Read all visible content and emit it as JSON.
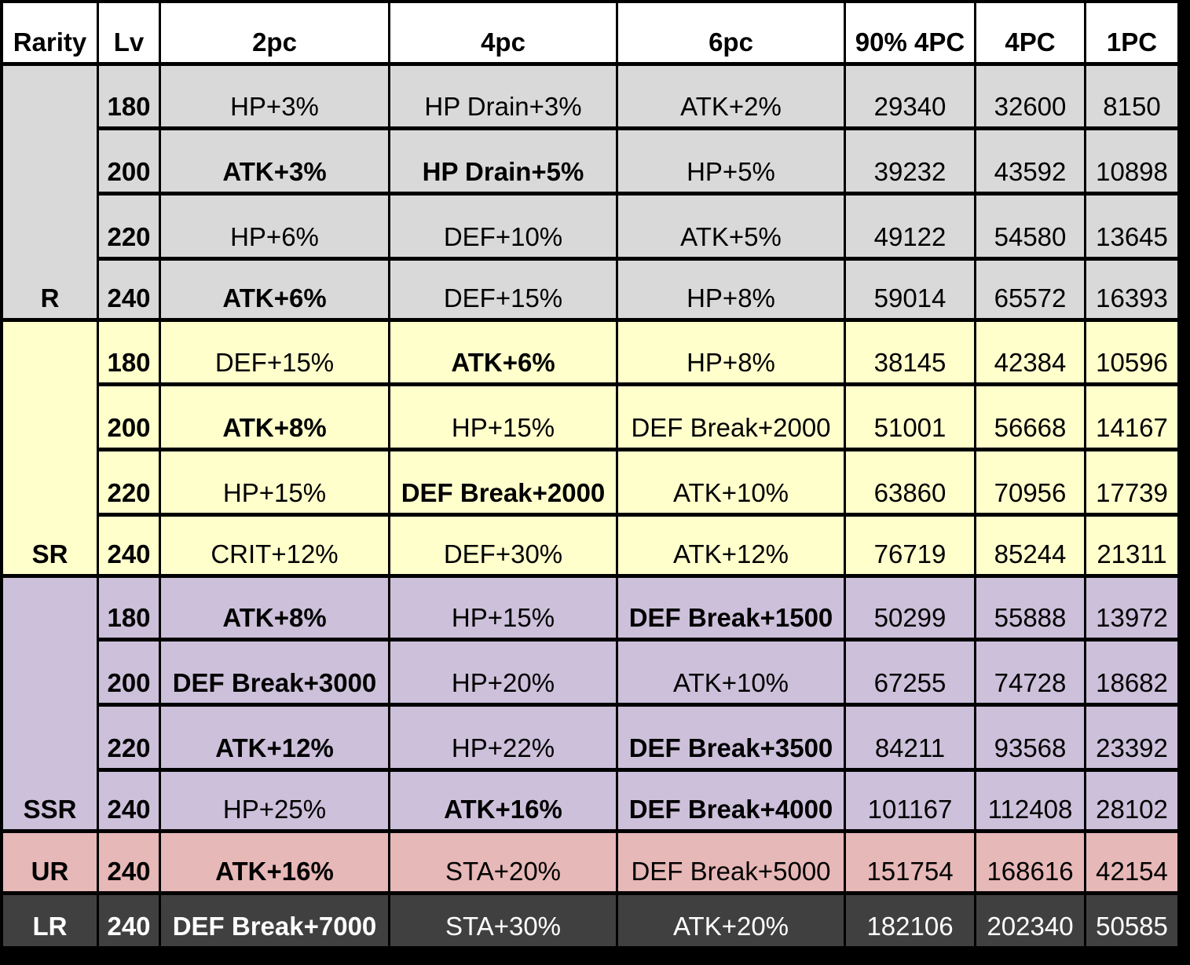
{
  "headers": [
    "Rarity",
    "Lv",
    "2pc",
    "4pc",
    "6pc",
    "90% 4PC",
    "4PC",
    "1PC"
  ],
  "groups": [
    {
      "rarity": "R",
      "color": "#d9d9d9",
      "text_color": "#000000",
      "rows": [
        {
          "lv": "180",
          "pc2": "HP+3%",
          "pc2_bold": false,
          "pc4": "HP Drain+3%",
          "pc4_bold": false,
          "pc6": "ATK+2%",
          "pc6_bold": false,
          "v90": "29340",
          "v4": "32600",
          "v1": "8150"
        },
        {
          "lv": "200",
          "pc2": "ATK+3%",
          "pc2_bold": true,
          "pc4": "HP Drain+5%",
          "pc4_bold": true,
          "pc6": "HP+5%",
          "pc6_bold": false,
          "v90": "39232",
          "v4": "43592",
          "v1": "10898"
        },
        {
          "lv": "220",
          "pc2": "HP+6%",
          "pc2_bold": false,
          "pc4": "DEF+10%",
          "pc4_bold": false,
          "pc6": "ATK+5%",
          "pc6_bold": false,
          "v90": "49122",
          "v4": "54580",
          "v1": "13645"
        },
        {
          "lv": "240",
          "pc2": "ATK+6%",
          "pc2_bold": true,
          "pc4": "DEF+15%",
          "pc4_bold": false,
          "pc6": "HP+8%",
          "pc6_bold": false,
          "v90": "59014",
          "v4": "65572",
          "v1": "16393"
        }
      ]
    },
    {
      "rarity": "SR",
      "color": "#ffffcc",
      "text_color": "#000000",
      "rows": [
        {
          "lv": "180",
          "pc2": "DEF+15%",
          "pc2_bold": false,
          "pc4": "ATK+6%",
          "pc4_bold": true,
          "pc6": "HP+8%",
          "pc6_bold": false,
          "v90": "38145",
          "v4": "42384",
          "v1": "10596"
        },
        {
          "lv": "200",
          "pc2": "ATK+8%",
          "pc2_bold": true,
          "pc4": "HP+15%",
          "pc4_bold": false,
          "pc6": "DEF Break+2000",
          "pc6_bold": false,
          "v90": "51001",
          "v4": "56668",
          "v1": "14167"
        },
        {
          "lv": "220",
          "pc2": "HP+15%",
          "pc2_bold": false,
          "pc4": "DEF Break+2000",
          "pc4_bold": true,
          "pc6": "ATK+10%",
          "pc6_bold": false,
          "v90": "63860",
          "v4": "70956",
          "v1": "17739"
        },
        {
          "lv": "240",
          "pc2": "CRIT+12%",
          "pc2_bold": false,
          "pc4": "DEF+30%",
          "pc4_bold": false,
          "pc6": "ATK+12%",
          "pc6_bold": false,
          "v90": "76719",
          "v4": "85244",
          "v1": "21311"
        }
      ]
    },
    {
      "rarity": "SSR",
      "color": "#ccc0da",
      "text_color": "#000000",
      "rows": [
        {
          "lv": "180",
          "pc2": "ATK+8%",
          "pc2_bold": true,
          "pc4": "HP+15%",
          "pc4_bold": false,
          "pc6": "DEF Break+1500",
          "pc6_bold": true,
          "v90": "50299",
          "v4": "55888",
          "v1": "13972"
        },
        {
          "lv": "200",
          "pc2": "DEF Break+3000",
          "pc2_bold": true,
          "pc4": "HP+20%",
          "pc4_bold": false,
          "pc6": "ATK+10%",
          "pc6_bold": false,
          "v90": "67255",
          "v4": "74728",
          "v1": "18682"
        },
        {
          "lv": "220",
          "pc2": "ATK+12%",
          "pc2_bold": true,
          "pc4": "HP+22%",
          "pc4_bold": false,
          "pc6": "DEF Break+3500",
          "pc6_bold": true,
          "v90": "84211",
          "v4": "93568",
          "v1": "23392"
        },
        {
          "lv": "240",
          "pc2": "HP+25%",
          "pc2_bold": false,
          "pc4": "ATK+16%",
          "pc4_bold": true,
          "pc6": "DEF Break+4000",
          "pc6_bold": true,
          "v90": "101167",
          "v4": "112408",
          "v1": "28102"
        }
      ]
    },
    {
      "rarity": "UR",
      "color": "#e6b8b7",
      "text_color": "#000000",
      "rows": [
        {
          "lv": "240",
          "pc2": "ATK+16%",
          "pc2_bold": true,
          "pc4": "STA+20%",
          "pc4_bold": false,
          "pc6": "DEF Break+5000",
          "pc6_bold": false,
          "v90": "151754",
          "v4": "168616",
          "v1": "42154"
        }
      ]
    },
    {
      "rarity": "LR",
      "color": "#404040",
      "text_color": "#ffffff",
      "rows": [
        {
          "lv": "240",
          "pc2": "DEF Break+7000",
          "pc2_bold": true,
          "pc4": "STA+30%",
          "pc4_bold": false,
          "pc6": "ATK+20%",
          "pc6_bold": false,
          "v90": "182106",
          "v4": "202340",
          "v1": "50585"
        }
      ]
    }
  ]
}
